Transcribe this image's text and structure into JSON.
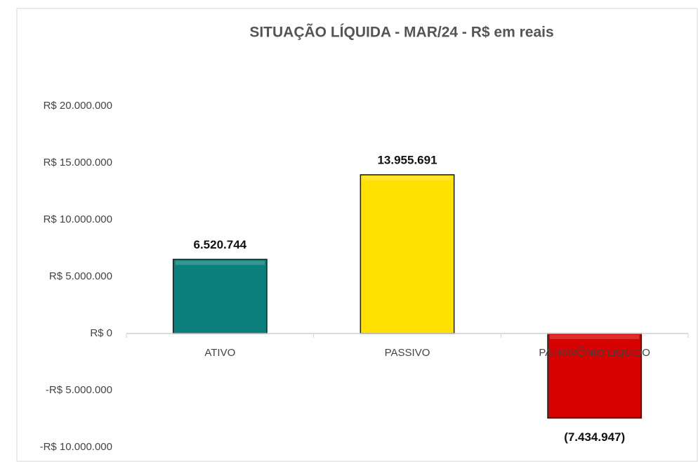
{
  "chart_data": {
    "type": "bar",
    "title": "SITUAÇÃO LÍQUIDA - MAR/24 - R$ em reais",
    "categories": [
      "ATIVO",
      "PASSIVO",
      "PATRIMÔNIO LÍQUIDO"
    ],
    "values": [
      6520744,
      13955691,
      -7434947
    ],
    "value_labels": [
      "6.520.744",
      "13.955.691",
      "(7.434.947)"
    ],
    "colors": [
      "#0b7f7b",
      "#ffe100",
      "#d60000"
    ],
    "ylim": [
      -10000000,
      20000000
    ],
    "yticks": [
      {
        "value": -10000000,
        "label": "-R$ 10.000.000"
      },
      {
        "value": -5000000,
        "label": "-R$ 5.000.000"
      },
      {
        "value": 0,
        "label": "R$ 0"
      },
      {
        "value": 5000000,
        "label": "R$ 5.000.000"
      },
      {
        "value": 10000000,
        "label": "R$ 10.000.000"
      },
      {
        "value": 15000000,
        "label": "R$ 15.000.000"
      },
      {
        "value": 20000000,
        "label": "R$ 20.000.000"
      }
    ],
    "grid": false
  }
}
